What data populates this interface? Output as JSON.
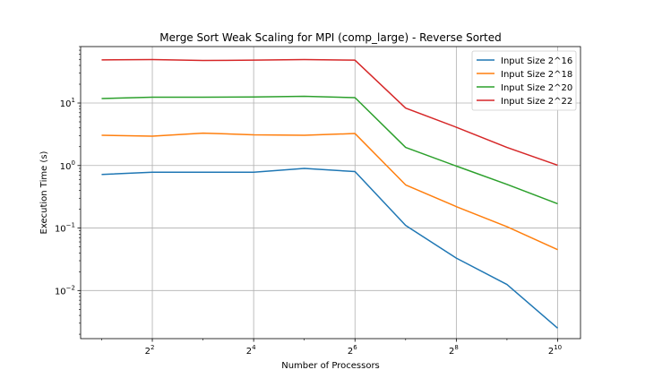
{
  "chart_data": {
    "type": "line",
    "title": "Merge Sort Weak Scaling for MPI (comp_large) - Reverse Sorted",
    "xlabel": "Number of Processors",
    "ylabel": "Execution Time (s)",
    "x_scale": "log2",
    "y_scale": "log10",
    "x": [
      2,
      4,
      8,
      16,
      32,
      64,
      128,
      256,
      512,
      1024
    ],
    "x_ticks": [
      {
        "value": 4,
        "base": "2",
        "exp": "2"
      },
      {
        "value": 16,
        "base": "2",
        "exp": "4"
      },
      {
        "value": 64,
        "base": "2",
        "exp": "6"
      },
      {
        "value": 256,
        "base": "2",
        "exp": "8"
      },
      {
        "value": 1024,
        "base": "2",
        "exp": "10"
      }
    ],
    "y_ticks": [
      {
        "value": 0.01,
        "base": "10",
        "exp": "−2"
      },
      {
        "value": 0.1,
        "base": "10",
        "exp": "−1"
      },
      {
        "value": 1,
        "base": "10",
        "exp": "0"
      },
      {
        "value": 10,
        "base": "10",
        "exp": "1"
      }
    ],
    "xlim": [
      1.5,
      1400
    ],
    "ylim": [
      0.0017,
      80
    ],
    "grid": true,
    "legend_position": "top-right",
    "series": [
      {
        "name": "Input Size 2^16",
        "color": "#1f77b4",
        "values": [
          0.72,
          0.78,
          0.78,
          0.78,
          0.9,
          0.8,
          0.11,
          0.033,
          0.0125,
          0.0025
        ]
      },
      {
        "name": "Input Size 2^18",
        "color": "#ff7f0e",
        "values": [
          3.05,
          2.95,
          3.3,
          3.1,
          3.05,
          3.25,
          0.49,
          0.22,
          0.105,
          0.045
        ]
      },
      {
        "name": "Input Size 2^20",
        "color": "#2ca02c",
        "values": [
          11.8,
          12.4,
          12.4,
          12.5,
          12.8,
          12.2,
          1.95,
          0.98,
          0.5,
          0.245
        ]
      },
      {
        "name": "Input Size 2^22",
        "color": "#d62728",
        "values": [
          49,
          49.5,
          48,
          48.5,
          49.5,
          48.5,
          8.3,
          4.1,
          1.95,
          1.01
        ]
      }
    ]
  }
}
